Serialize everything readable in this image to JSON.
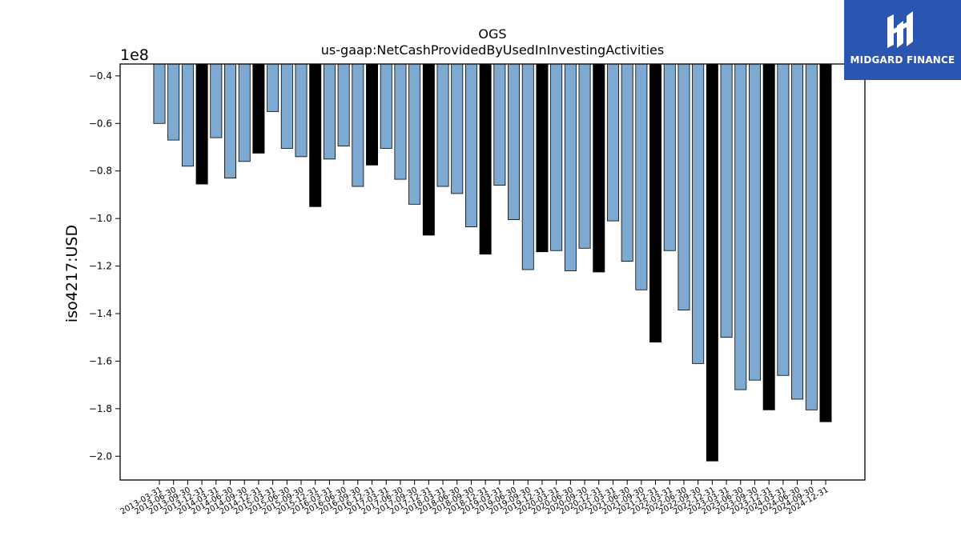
{
  "logo": {
    "text": "MIDGARD FINANCE"
  },
  "chart_data": {
    "type": "bar",
    "title": "OGS",
    "subtitle": "us-gaap:NetCashProvidedByUsedInInvestingActivities",
    "ylabel": "iso4217:USD",
    "xlabel": "",
    "scale_label": "1e8",
    "ylim": [
      -2.1,
      -0.35
    ],
    "yticks": [
      -0.4,
      -0.6,
      -0.8,
      -1.0,
      -1.2,
      -1.4,
      -1.6,
      -1.8,
      -2.0
    ],
    "ytick_labels": [
      "−0.4",
      "−0.6",
      "−0.8",
      "−1.0",
      "−1.2",
      "−1.4",
      "−1.6",
      "−1.8",
      "−2.0"
    ],
    "grid": false,
    "colors": {
      "quarterly": "#7eaad1",
      "annual": "#000000"
    },
    "categories": [
      "2013-03-31",
      "2013-06-30",
      "2013-09-30",
      "2013-12-31",
      "2014-03-31",
      "2014-06-30",
      "2014-09-30",
      "2014-12-31",
      "2015-03-31",
      "2015-06-30",
      "2015-09-30",
      "2015-12-31",
      "2016-03-31",
      "2016-06-30",
      "2016-09-30",
      "2016-12-31",
      "2017-03-31",
      "2017-06-30",
      "2017-09-30",
      "2017-12-31",
      "2018-03-31",
      "2018-06-30",
      "2018-09-30",
      "2018-12-31",
      "2019-03-31",
      "2019-06-30",
      "2019-09-30",
      "2019-12-31",
      "2020-03-31",
      "2020-06-30",
      "2020-09-30",
      "2020-12-31",
      "2021-03-31",
      "2021-06-30",
      "2021-09-30",
      "2021-12-31",
      "2022-03-31",
      "2022-06-30",
      "2022-09-30",
      "2022-12-31",
      "2023-03-31",
      "2023-06-30",
      "2023-09-30",
      "2023-12-31",
      "2024-03-31",
      "2024-06-30",
      "2024-09-30",
      "2024-12-31"
    ],
    "values": [
      -0.6,
      -0.67,
      -0.78,
      -0.855,
      -0.66,
      -0.83,
      -0.76,
      -0.725,
      -0.55,
      -0.705,
      -0.74,
      -0.95,
      -0.75,
      -0.695,
      -0.865,
      -0.775,
      -0.705,
      -0.835,
      -0.94,
      -1.07,
      -0.865,
      -0.895,
      -1.035,
      -1.15,
      -0.86,
      -1.005,
      -1.215,
      -1.14,
      -1.135,
      -1.22,
      -1.125,
      -1.225,
      -1.01,
      -1.18,
      -1.3,
      -1.52,
      -1.135,
      -1.385,
      -1.61,
      -2.02,
      -1.5,
      -1.72,
      -1.68,
      -1.805,
      -1.66,
      -1.76,
      -1.805,
      -1.855
    ],
    "annual": [
      false,
      false,
      false,
      true,
      false,
      false,
      false,
      true,
      false,
      false,
      false,
      true,
      false,
      false,
      false,
      true,
      false,
      false,
      false,
      true,
      false,
      false,
      false,
      true,
      false,
      false,
      false,
      true,
      false,
      false,
      false,
      true,
      false,
      false,
      false,
      true,
      false,
      false,
      false,
      true,
      false,
      false,
      false,
      true,
      false,
      false,
      false,
      true
    ]
  }
}
